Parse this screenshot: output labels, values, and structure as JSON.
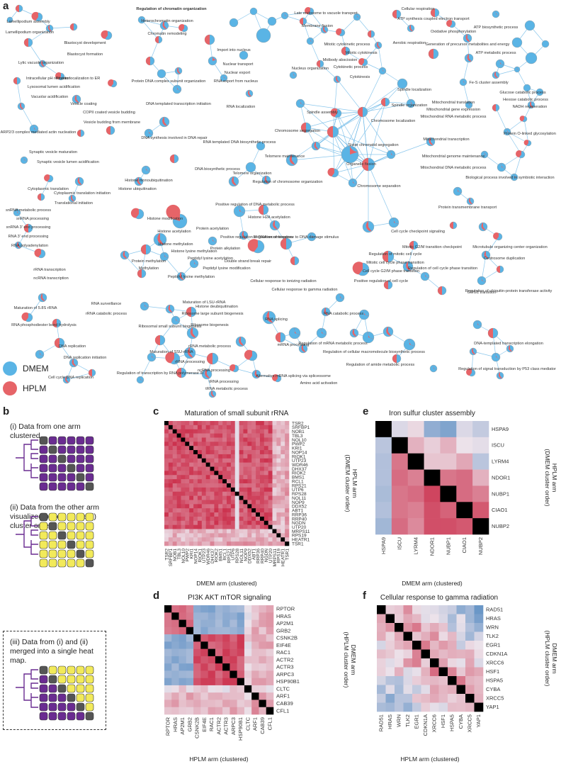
{
  "panel_letters": {
    "a": "a",
    "b": "b",
    "c": "c",
    "d": "d",
    "e": "e",
    "f": "f"
  },
  "colors": {
    "dmem": "#5ab4e5",
    "hplm": "#e66468",
    "edge": "#64b4e6",
    "accent": "#6a2c91",
    "yellow": "#f2ea5a",
    "grey": "#555555"
  },
  "legend": [
    {
      "label": "DMEM",
      "color": "#5ab4e5"
    },
    {
      "label": "HPLM",
      "color": "#e66468"
    }
  ],
  "network_labels": [
    "Lamellipodium assembly",
    "Lamellipodium organization",
    "Blastocyst development",
    "Blastocyst formation",
    "Regulation of chromatin organization",
    "Heterochromatin organization",
    "Chromatin remodeling",
    "Import into nucleus",
    "Nuclear transport",
    "Nuclear export",
    "RNA export from nucleus",
    "RNA localization",
    "Late endosome to vacuole transport",
    "Membrane fission",
    "Mitotic cytokinetic process",
    "Mitotic cytokinesis",
    "Midbody abscission",
    "Cytokinetic process",
    "Cytokinesis",
    "Nucleus organization",
    "Cellular respiration",
    "ATP synthesis coupled electron transport",
    "Oxidative phosphorylation",
    "ATP biosynthetic process",
    "Aerobic respiration",
    "Generation of precursor metabolites and energy",
    "ATP metabolic process",
    "Lytic vacuole organization",
    "Intracellular pH reduction",
    "Lysosomal lumen acidification",
    "Vacuolar acidification",
    "Protein localization to ER",
    "Protein DNA complex subunit organization",
    "DNA templated transcription initiation",
    "Spindle localization",
    "Spindle organization",
    "Fe-S cluster assembly",
    "Glucose catabolic process",
    "Hexose catabolic process",
    "NADH regeneration",
    "ARP2/3 complex mediated actin nucleation",
    "Vesicle coating",
    "COPII coated vesicle budding",
    "Vesicle budding from membrane",
    "Spindle assembly",
    "Chromosome localization",
    "Chromosome segregation",
    "Mitochondrial translation",
    "Mitochondrial gene expression",
    "Mitochondrial RNA metabolic process",
    "Mitochondrial transcription",
    "Protein O-linked glycosylation",
    "Synaptic vesicle maturation",
    "Synaptic vesicle lumen acidification",
    "DNA synthesis involved in DNA repair",
    "RNA templated DNA biosynthetic process",
    "Telomere maintenance",
    "DNA biosynthetic process",
    "Telomere organization",
    "Regulation of chromosome organization",
    "Sister chromatid segregation",
    "Organelle fission",
    "Mitochondrial genome maintenance",
    "Mitochondrial DNA metabolic process",
    "Biological process involved in symbiotic interaction",
    "Histone monoubiquitination",
    "Histone ubiquitination",
    "Chromosome separation",
    "Cytoplasmic translation",
    "Cytoplasmic translation initiation",
    "Translational initiation",
    "Positive regulation of DNA metabolic process",
    "Protein transmembrane transport",
    "snRNA metabolic process",
    "snRNA processing",
    "snRNA 3' end processing",
    "RNA 3' end processing",
    "RNA polyadenylation",
    "Histone modification",
    "Protein acetylation",
    "Histone H2A acetylation",
    "Histone methylation",
    "Histone lysine methylation",
    "Peptidyl lysine acetylation",
    "Positive regulation of DNA recombination",
    "Regulation of response to DNA damage stimulus",
    "Regulation of mitotic cell cycle",
    "Cell cycle checkpoint signaling",
    "Mitotic G2/M transition checkpoint",
    "Microtubule organizing center organization",
    "Centrosome duplication",
    "Histone acetylation",
    "Protein methylation",
    "Protein alkylation",
    "Methylation",
    "Peptidyl lysine modification",
    "Peptidyl lysine methylation",
    "Double strand break repair",
    "Mitotic cell cycle phase transition",
    "Cell cycle G2/M phase transition",
    "Regulation of cell cycle phase transition",
    "rRNA transcription",
    "ncRNA transcription",
    "Cellular response to ionizing radiation",
    "Cellular response to gamma radiation",
    "Positive regulation of cell cycle",
    "G0/G1 transition",
    "Regulation of ubiquitin-protein transferase activity",
    "Maturation of 5.8S rRNA",
    "RNA surveillance",
    "rRNA catabolic process",
    "Histone deubiquitination",
    "Maturation of LSU-rRNA",
    "RNA phosphodiester bond hydrolysis",
    "Ribosome large subunit biogenesis",
    "Ribosome biogenesis",
    "RNA catabolic process",
    "Ribosomal small subunit biogenesis",
    "DNA replication",
    "rRNA metabolic process",
    "RNA splicing",
    "mRNA processing",
    "Regulation of mRNA metabolic process",
    "Regulation of cellular macromolecule biosynthetic process",
    "DNA-templated transcription elongation",
    "Maturation of SSU-rRNA",
    "DNA replication initiation",
    "rRNA processing",
    "ncRNA processing",
    "Alternative mRNA splicing via spliceosome",
    "Regulation of amide metabolic process",
    "Cell cycle DNA replication",
    "Regulation of transcription by RNA polymerase III",
    "tRNA processing",
    "Amino acid activation",
    "tRNA metabolic process",
    "Regulation of signal transduction by P53 class mediator"
  ],
  "panel_b": {
    "step1": "(i) Data from one arm clustered",
    "step2": "(ii) Data from the other arm visualized based on the (i) cluster order.",
    "step3": "(iii) Data from (i) and (ii) merged into a single heat map."
  },
  "heatmaps": {
    "c": {
      "title": "Maturation of small subunit rRNA",
      "xlabel": "DMEM arm (clustered)",
      "ylabel": "HPLM arm",
      "ylabel2": "(DMEM cluster order)",
      "genes": [
        "TSR2",
        "SRFBP1",
        "NOB1",
        "TBL3",
        "NOL10",
        "PWP2",
        "KRI1",
        "NOP14",
        "RIOK1",
        "UTP23",
        "WDR46",
        "DHX37",
        "RIOK2",
        "BMS1",
        "RCL1",
        "RPS21",
        "UTP6",
        "RPS28",
        "NOL11",
        "NOP9",
        "DDX52",
        "ABT1",
        "RRP36",
        "RRP40",
        "NGDN",
        "UTP20",
        "MRPS11",
        "RPS19",
        "HEATR1",
        "TSR1"
      ]
    },
    "d": {
      "title": "PI3K AKT mTOR signaling",
      "xlabel": "HPLM arm (clustered)",
      "ylabel": "DMEM arm",
      "ylabel2": "(HPLM cluster order)",
      "genes": [
        "RPTOR",
        "HRAS",
        "AP2M1",
        "GRB2",
        "CSNK2B",
        "EIF4E",
        "RAC1",
        "ACTR2",
        "ACTR3",
        "ARPC3",
        "HSP90B1",
        "CLTC",
        "ARF1",
        "CAB39",
        "CFL1"
      ]
    },
    "e": {
      "title": "Iron sulfur cluster assembly",
      "xlabel": "DMEM arm (clustered)",
      "ylabel": "HPLM arm",
      "ylabel2": "(DMEM cluster order)",
      "genes": [
        "HSPA9",
        "ISCU",
        "LYRM4",
        "NDOR1",
        "NUBP1",
        "CIAO1",
        "NUBP2"
      ]
    },
    "f": {
      "title": "Cellular response to gamma radiation",
      "xlabel": "HPLM arm (clustered)",
      "ylabel": "DMEM arm",
      "ylabel2": "(HPLM cluster order)",
      "genes": [
        "RAD51",
        "HRAS",
        "WRN",
        "TLK2",
        "EGR1",
        "CDKN1A",
        "XRCC6",
        "HSF1",
        "HSPA5",
        "CYBA",
        "XRCC5",
        "YAP1"
      ]
    }
  }
}
